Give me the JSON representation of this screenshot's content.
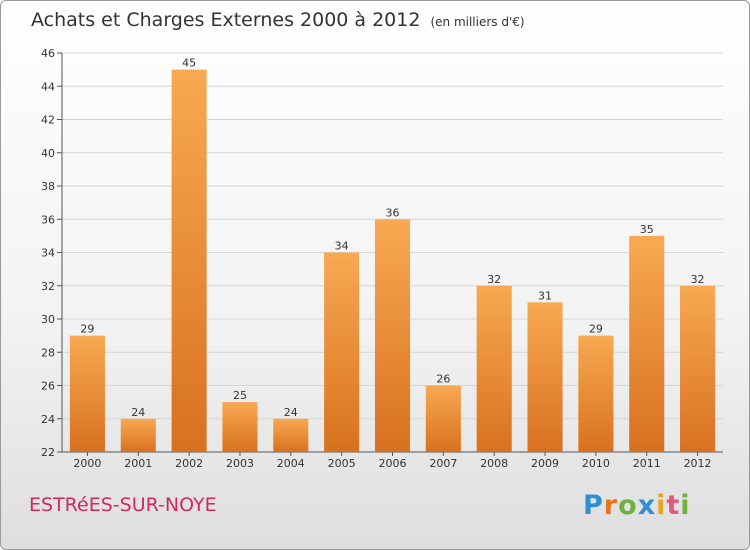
{
  "title": "Achats et Charges Externes 2000 à 2012",
  "unit_note": "(en milliers d'€)",
  "town": "ESTRéES-SUR-NOYE",
  "logo": {
    "letters": [
      "P",
      "r",
      "o",
      "x",
      "i",
      "t",
      "i"
    ],
    "colors": [
      "#2f8fd6",
      "#e8741e",
      "#6db33f",
      "#2f8fd6",
      "#e5a823",
      "#e05a7a",
      "#6db33f"
    ]
  },
  "colors": {
    "bar_light": "#f8a952",
    "bar_dark": "#d8711f",
    "town": "#d02a5c",
    "grid": "#d6d6d6"
  },
  "chart_data": {
    "type": "bar",
    "title": "Achats et Charges Externes 2000 à 2012",
    "subtitle": "(en milliers d'€)",
    "categories": [
      "2000",
      "2001",
      "2002",
      "2003",
      "2004",
      "2005",
      "2006",
      "2007",
      "2008",
      "2009",
      "2010",
      "2011",
      "2012"
    ],
    "values": [
      29,
      24,
      45,
      25,
      24,
      34,
      36,
      26,
      32,
      31,
      29,
      35,
      32
    ],
    "ylim": [
      22,
      46
    ],
    "yticks": [
      22,
      24,
      26,
      28,
      30,
      32,
      34,
      36,
      38,
      40,
      42,
      44,
      46
    ],
    "grid": true,
    "data_labels": true
  }
}
